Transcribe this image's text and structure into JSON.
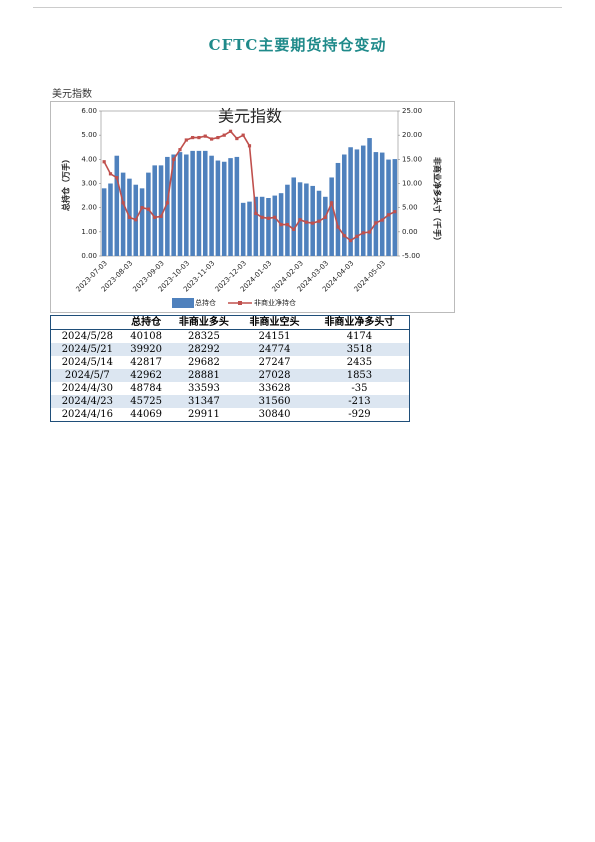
{
  "header": {
    "title": "CFTC主要期货持仓变动"
  },
  "section_label": "美元指数",
  "chart_data": {
    "type": "bar-line",
    "title": "美元指数",
    "y_label": "总持仓（万手）",
    "y2_label": "非商业净多头寸（千手）",
    "categories": [
      "2023-07-03",
      null,
      null,
      null,
      "2023-08-03",
      null,
      null,
      null,
      null,
      "2023-09-03",
      null,
      null,
      null,
      "2023-10-03",
      null,
      null,
      null,
      "2023-11-03",
      null,
      null,
      null,
      null,
      "2023-12-03",
      null,
      null,
      null,
      "2024-01-03",
      null,
      null,
      null,
      null,
      "2024-02-03",
      null,
      null,
      null,
      "2024-03-03",
      null,
      null,
      null,
      "2024-04-03",
      null,
      null,
      null,
      null,
      "2024-05-03",
      null,
      null
    ],
    "series": [
      {
        "name": "总持仓",
        "color": "#4f81bd",
        "values": [
          2.8,
          3.0,
          4.15,
          3.45,
          3.2,
          2.95,
          2.8,
          3.45,
          3.75,
          3.75,
          4.1,
          4.2,
          4.3,
          4.2,
          4.35,
          4.35,
          4.35,
          4.15,
          3.95,
          3.9,
          4.05,
          4.1,
          2.2,
          2.25,
          2.45,
          2.45,
          2.4,
          2.5,
          2.6,
          2.95,
          3.25,
          3.05,
          3.0,
          2.9,
          2.7,
          2.45,
          3.25,
          3.85,
          4.2,
          4.5,
          4.41,
          4.57,
          4.88,
          4.3,
          4.28,
          3.99,
          4.01
        ]
      },
      {
        "name": "非商业净持仓",
        "color": "#c0504d",
        "axis": "y2",
        "values": [
          14.5,
          12,
          11.2,
          6,
          3,
          2.5,
          5,
          4.7,
          3,
          3.2,
          6,
          15,
          17,
          19,
          19.5,
          19.5,
          19.8,
          19.2,
          19.5,
          20,
          20.8,
          19.3,
          20,
          17.8,
          3.8,
          3,
          2.8,
          3,
          1.5,
          1.5,
          0.5,
          2.5,
          2,
          1.8,
          2.2,
          3,
          6,
          1,
          -0.8,
          -1.8,
          -0.93,
          -0.21,
          -0.04,
          1.85,
          2.44,
          3.52,
          4.17
        ]
      }
    ],
    "ylim": [
      0,
      6
    ],
    "yticks": [
      {
        "value": 0,
        "label": "0.00"
      },
      {
        "value": 1,
        "label": "1.00"
      },
      {
        "value": 2,
        "label": "2.00"
      },
      {
        "value": 3,
        "label": "3.00"
      },
      {
        "value": 4,
        "label": "4.00"
      },
      {
        "value": 5,
        "label": "5.00"
      },
      {
        "value": 6,
        "label": "6.00"
      }
    ],
    "y2lim": [
      -5,
      25
    ],
    "y2ticks": [
      {
        "value": -5,
        "label": "-5.00"
      },
      {
        "value": 0,
        "label": "0.00"
      },
      {
        "value": 5,
        "label": "5.00"
      },
      {
        "value": 10,
        "label": "10.00"
      },
      {
        "value": 15,
        "label": "15.00"
      },
      {
        "value": 20,
        "label": "20.00"
      },
      {
        "value": 25,
        "label": "25.00"
      }
    ]
  },
  "table": {
    "columns": [
      "总持仓",
      "非商业多头",
      "非商业空头",
      "非商业净多头寸"
    ],
    "rows": [
      [
        "2024/5/28",
        40108,
        28325,
        24151,
        4174
      ],
      [
        "2024/5/21",
        39920,
        28292,
        24774,
        3518
      ],
      [
        "2024/5/14",
        42817,
        29682,
        27247,
        2435
      ],
      [
        "2024/5/7",
        42962,
        28881,
        27028,
        1853
      ],
      [
        "2024/4/30",
        48784,
        33593,
        33628,
        -35
      ],
      [
        "2024/4/23",
        45725,
        31347,
        31560,
        -213
      ],
      [
        "2024/4/16",
        44069,
        29911,
        30840,
        -929
      ]
    ]
  }
}
